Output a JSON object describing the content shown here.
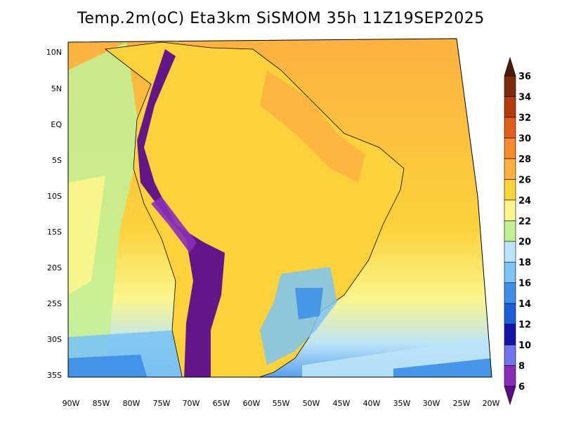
{
  "title": "Temp.2m(oC) Eta3km SiSMOM 35h 11Z19SEP2025",
  "lat_labels": [
    "10N",
    "5N",
    "EQ",
    "5S",
    "10S",
    "15S",
    "20S",
    "25S",
    "30S",
    "35S"
  ],
  "lon_labels": [
    "90W",
    "85W",
    "80W",
    "75W",
    "70W",
    "65W",
    "60W",
    "55W",
    "50W",
    "45W",
    "40W",
    "35W",
    "30W",
    "25W",
    "20W"
  ],
  "colorbar": {
    "labels": [
      "6",
      "8",
      "10",
      "12",
      "14",
      "16",
      "18",
      "20",
      "22",
      "24",
      "26",
      "28",
      "30",
      "32",
      "34",
      "36"
    ],
    "colors": [
      "#5a0c8c",
      "#8a2cb8",
      "#7474ee",
      "#1414a8",
      "#1c60d8",
      "#3c8ee8",
      "#7cc4f4",
      "#bce4f8",
      "#c4f094",
      "#fcf68c",
      "#fcd23c",
      "#fcb040",
      "#f88c2c",
      "#e0601c",
      "#b43c0c",
      "#7c2c0c",
      "#4c1808"
    ]
  },
  "colors": {
    "ocean_north": "#fcb040",
    "ocean_south": "#fcf68c",
    "land_main": "#fcd23c",
    "andes": "#5a0c8c",
    "south_cool": "#7cc4f4",
    "border": "#000000"
  }
}
